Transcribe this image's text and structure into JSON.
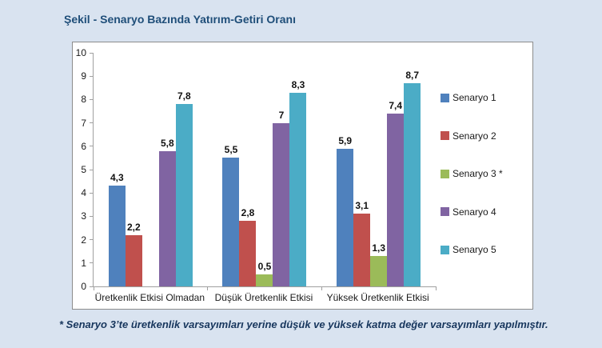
{
  "page": {
    "background_color": "#D9E3F0",
    "title": "Şekil - Senaryo Bazında Yatırım-Getiri Oranı",
    "title_color": "#1F4E79",
    "footnote": "* Senaryo 3’te üretkenlik varsayımları yerine düşük ve yüksek katma değer varsayımları yapılmıştır.",
    "footnote_color": "#17365D"
  },
  "chart_data": {
    "type": "bar",
    "title": "Şekil - Senaryo Bazında Yatırım-Getiri Oranı",
    "categories": [
      "Üretkenlik Etkisi Olmadan",
      "Düşük Üretkenlik Etkisi",
      "Yüksek Üretkenlik Etkisi"
    ],
    "series": [
      {
        "name": "Senaryo 1",
        "color": "#4F81BD",
        "values": [
          4.3,
          5.5,
          5.9
        ],
        "labels": [
          "4,3",
          "5,5",
          "5,9"
        ]
      },
      {
        "name": "Senaryo 2",
        "color": "#C0504D",
        "values": [
          2.2,
          2.8,
          3.1
        ],
        "labels": [
          "2,2",
          "2,8",
          "3,1"
        ]
      },
      {
        "name": "Senaryo 3 *",
        "color": "#9BBB59",
        "values": [
          null,
          0.5,
          1.3
        ],
        "labels": [
          null,
          "0,5",
          "1,3"
        ]
      },
      {
        "name": "Senaryo 4",
        "color": "#8064A2",
        "values": [
          5.8,
          7.0,
          7.4
        ],
        "labels": [
          "5,8",
          "7",
          "7,4"
        ]
      },
      {
        "name": "Senaryo 5",
        "color": "#4BACC6",
        "values": [
          7.8,
          8.3,
          8.7
        ],
        "labels": [
          "7,8",
          "8,3",
          "8,7"
        ]
      }
    ],
    "ylim": [
      0,
      10
    ],
    "yticks": [
      0,
      1,
      2,
      3,
      4,
      5,
      6,
      7,
      8,
      9,
      10
    ],
    "grid": false,
    "legend_position": "right",
    "axis_color": "#A0A0A0",
    "chart_border_color": "#8C8C8C",
    "plot_background": "#FFFFFF"
  }
}
